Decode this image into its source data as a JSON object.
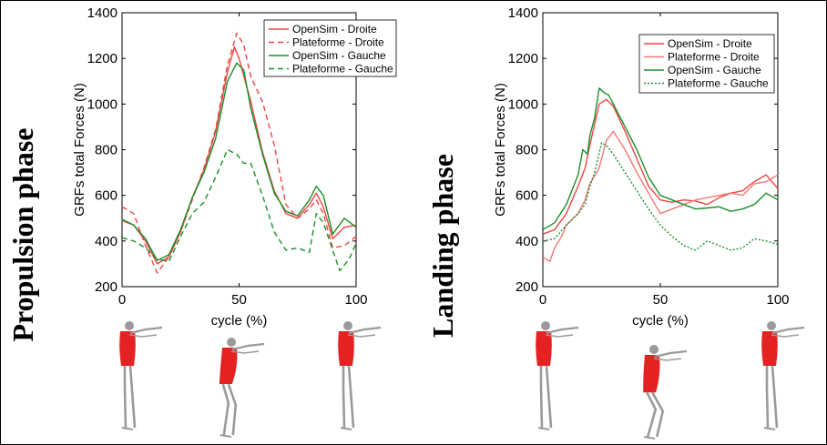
{
  "labels": {
    "left_phase": "Propulsion phase",
    "right_phase": "Landing phase"
  },
  "colors": {
    "red": "#ee4444",
    "green": "#1a8f2a",
    "skeleton_bone": "#9a9a9a",
    "muscle": "#e52222"
  },
  "chart_data": [
    {
      "type": "line",
      "id": "propulsion",
      "xlabel": "cycle (%)",
      "ylabel": "GRFs total Forces (N)",
      "xlim": [
        0,
        100
      ],
      "ylim": [
        200,
        1400
      ],
      "xticks": [
        0,
        50,
        100
      ],
      "yticks": [
        200,
        400,
        600,
        800,
        1000,
        1200,
        1400
      ],
      "grid": false,
      "legend_position": "top-right",
      "series": [
        {
          "name": "OpenSim - Droite",
          "color": "#ee4444",
          "dash": "solid",
          "x": [
            0,
            5,
            10,
            15,
            20,
            25,
            30,
            35,
            40,
            45,
            48,
            50,
            55,
            60,
            65,
            70,
            75,
            80,
            83,
            86,
            90,
            95,
            100
          ],
          "y": [
            490,
            470,
            400,
            300,
            330,
            440,
            590,
            710,
            880,
            1140,
            1250,
            1200,
            1010,
            790,
            620,
            520,
            500,
            560,
            610,
            550,
            410,
            460,
            470
          ]
        },
        {
          "name": "Plateforme - Droite",
          "color": "#ee4444",
          "dash": "dashed",
          "x": [
            0,
            5,
            10,
            15,
            20,
            25,
            30,
            35,
            40,
            45,
            49,
            52,
            55,
            60,
            65,
            70,
            75,
            80,
            83,
            86,
            90,
            95,
            100
          ],
          "y": [
            550,
            520,
            380,
            260,
            330,
            440,
            580,
            720,
            890,
            1170,
            1310,
            1260,
            1120,
            1010,
            820,
            560,
            500,
            540,
            580,
            520,
            370,
            380,
            420
          ]
        },
        {
          "name": "OpenSim - Gauche",
          "color": "#1a8f2a",
          "dash": "solid",
          "x": [
            0,
            5,
            10,
            15,
            20,
            25,
            30,
            35,
            40,
            45,
            49,
            52,
            55,
            60,
            65,
            70,
            75,
            80,
            83,
            86,
            90,
            95,
            100
          ],
          "y": [
            495,
            470,
            410,
            315,
            340,
            450,
            590,
            700,
            850,
            1100,
            1180,
            1150,
            980,
            780,
            610,
            530,
            510,
            580,
            640,
            600,
            430,
            500,
            460
          ]
        },
        {
          "name": "Plateforme - Gauche",
          "color": "#1a8f2a",
          "dash": "dashed",
          "x": [
            0,
            5,
            10,
            15,
            20,
            25,
            30,
            35,
            40,
            45,
            49,
            52,
            55,
            60,
            65,
            70,
            75,
            80,
            83,
            86,
            90,
            93,
            97,
            100
          ],
          "y": [
            415,
            400,
            370,
            320,
            310,
            420,
            520,
            570,
            680,
            800,
            780,
            740,
            740,
            600,
            440,
            360,
            370,
            350,
            520,
            480,
            360,
            270,
            320,
            390
          ]
        }
      ]
    },
    {
      "type": "line",
      "id": "landing",
      "xlabel": "cycle (%)",
      "ylabel": "GRFs total Forces (N)",
      "xlim": [
        0,
        100
      ],
      "ylim": [
        200,
        1400
      ],
      "xticks": [
        0,
        50,
        100
      ],
      "yticks": [
        200,
        400,
        600,
        800,
        1000,
        1200,
        1400
      ],
      "grid": false,
      "legend_position": "top-right",
      "series": [
        {
          "name": "OpenSim - Droite",
          "color": "#ee4444",
          "dash": "solid",
          "x": [
            0,
            5,
            10,
            15,
            18,
            20,
            24,
            27,
            30,
            35,
            40,
            45,
            50,
            55,
            60,
            65,
            70,
            75,
            80,
            85,
            90,
            95,
            100
          ],
          "y": [
            430,
            450,
            520,
            640,
            720,
            820,
            1000,
            1020,
            990,
            880,
            760,
            640,
            580,
            570,
            580,
            575,
            560,
            590,
            610,
            620,
            660,
            690,
            630
          ]
        },
        {
          "name": "Plateforme - Droite",
          "color": "#f07878",
          "dash": "solid",
          "x": [
            0,
            3,
            5,
            8,
            10,
            13,
            15,
            18,
            20,
            24,
            27,
            30,
            35,
            40,
            45,
            50,
            55,
            60,
            65,
            70,
            75,
            80,
            85,
            90,
            95,
            100
          ],
          "y": [
            330,
            310,
            370,
            420,
            470,
            500,
            520,
            580,
            650,
            720,
            840,
            880,
            800,
            700,
            610,
            520,
            540,
            560,
            580,
            590,
            600,
            610,
            600,
            650,
            660,
            690
          ]
        },
        {
          "name": "OpenSim - Gauche",
          "color": "#1a8f2a",
          "dash": "solid",
          "x": [
            0,
            5,
            10,
            15,
            17,
            19,
            20,
            22,
            24,
            26,
            28,
            30,
            35,
            40,
            45,
            50,
            55,
            60,
            65,
            70,
            75,
            80,
            85,
            90,
            95,
            100
          ],
          "y": [
            450,
            480,
            560,
            690,
            800,
            780,
            860,
            940,
            1070,
            1050,
            1040,
            1000,
            900,
            800,
            680,
            600,
            580,
            560,
            540,
            545,
            550,
            530,
            540,
            560,
            610,
            580
          ]
        },
        {
          "name": "Plateforme - Gauche",
          "color": "#1a8f2a",
          "dash": "dotted",
          "x": [
            0,
            5,
            10,
            15,
            18,
            20,
            22,
            25,
            27,
            30,
            35,
            40,
            45,
            50,
            55,
            60,
            65,
            70,
            75,
            80,
            85,
            90,
            95,
            100
          ],
          "y": [
            400,
            410,
            470,
            520,
            560,
            640,
            700,
            830,
            820,
            780,
            700,
            620,
            540,
            470,
            420,
            380,
            360,
            400,
            380,
            360,
            370,
            410,
            400,
            385
          ]
        }
      ]
    }
  ]
}
